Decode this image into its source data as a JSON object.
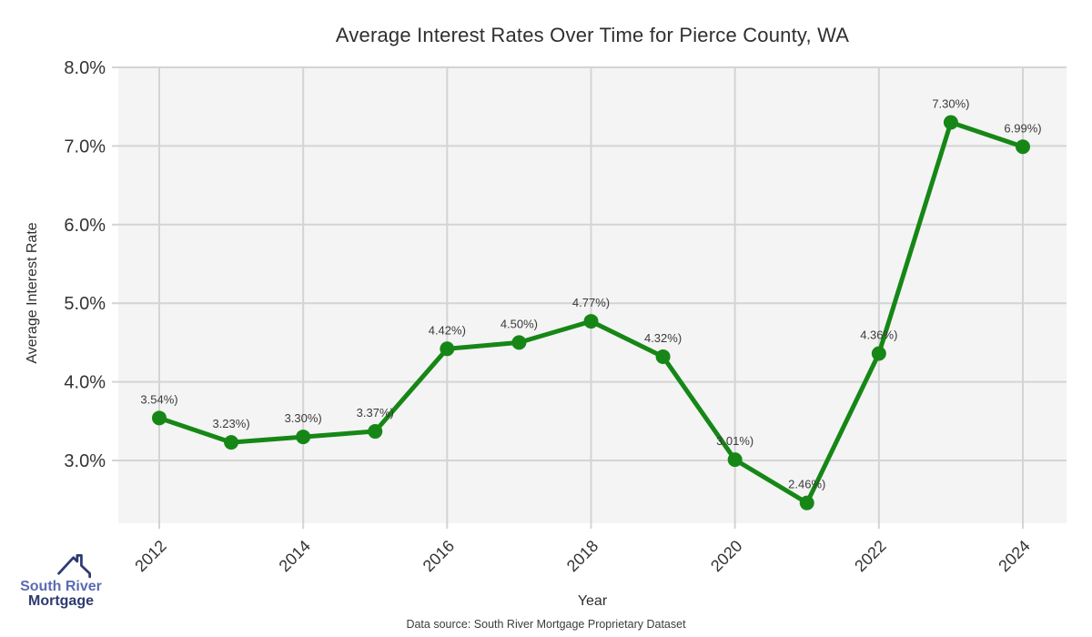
{
  "title": "Average Interest Rates Over Time for Pierce County, WA",
  "footer": {
    "source": "Data source: South River Mortgage Proprietary Dataset"
  },
  "logo": {
    "line1": "South River",
    "line2": "Mortgage",
    "color_primary": "#5b6bb4",
    "color_secondary": "#2e3a70"
  },
  "chart_data": {
    "type": "line",
    "title": "Average Interest Rates Over Time for Pierce County, WA",
    "xlabel": "Year",
    "ylabel": "Average Interest Rate",
    "x": [
      2012,
      2013,
      2014,
      2015,
      2016,
      2017,
      2018,
      2019,
      2020,
      2021,
      2022,
      2023,
      2024
    ],
    "values": [
      3.54,
      3.23,
      3.3,
      3.37,
      4.42,
      4.5,
      4.77,
      4.32,
      3.01,
      2.46,
      4.36,
      7.3,
      6.99
    ],
    "point_labels": [
      "3.54%)",
      "3.23%)",
      "3.30%)",
      "3.37%)",
      "4.42%)",
      "4.50%)",
      "4.77%)",
      "4.32%)",
      "3.01%)",
      "2.46%)",
      "4.36%)",
      "7.30%)",
      "6.99%)"
    ],
    "xticks": [
      2012,
      2014,
      2016,
      2018,
      2020,
      2022,
      2024
    ],
    "yticks": [
      3.0,
      4.0,
      5.0,
      6.0,
      7.0,
      8.0
    ],
    "ytick_labels": [
      "3.0%",
      "4.0%",
      "5.0%",
      "6.0%",
      "7.0%",
      "8.0%"
    ],
    "ylim": [
      2.2,
      8.0
    ],
    "grid": true,
    "legend": "none",
    "line_color": "#168716",
    "marker_color": "#168716",
    "plot_bg": "#f4f4f4",
    "grid_color": "#d4d4d4",
    "tick_color": "#333333",
    "label_color": "#3a3a3a"
  }
}
